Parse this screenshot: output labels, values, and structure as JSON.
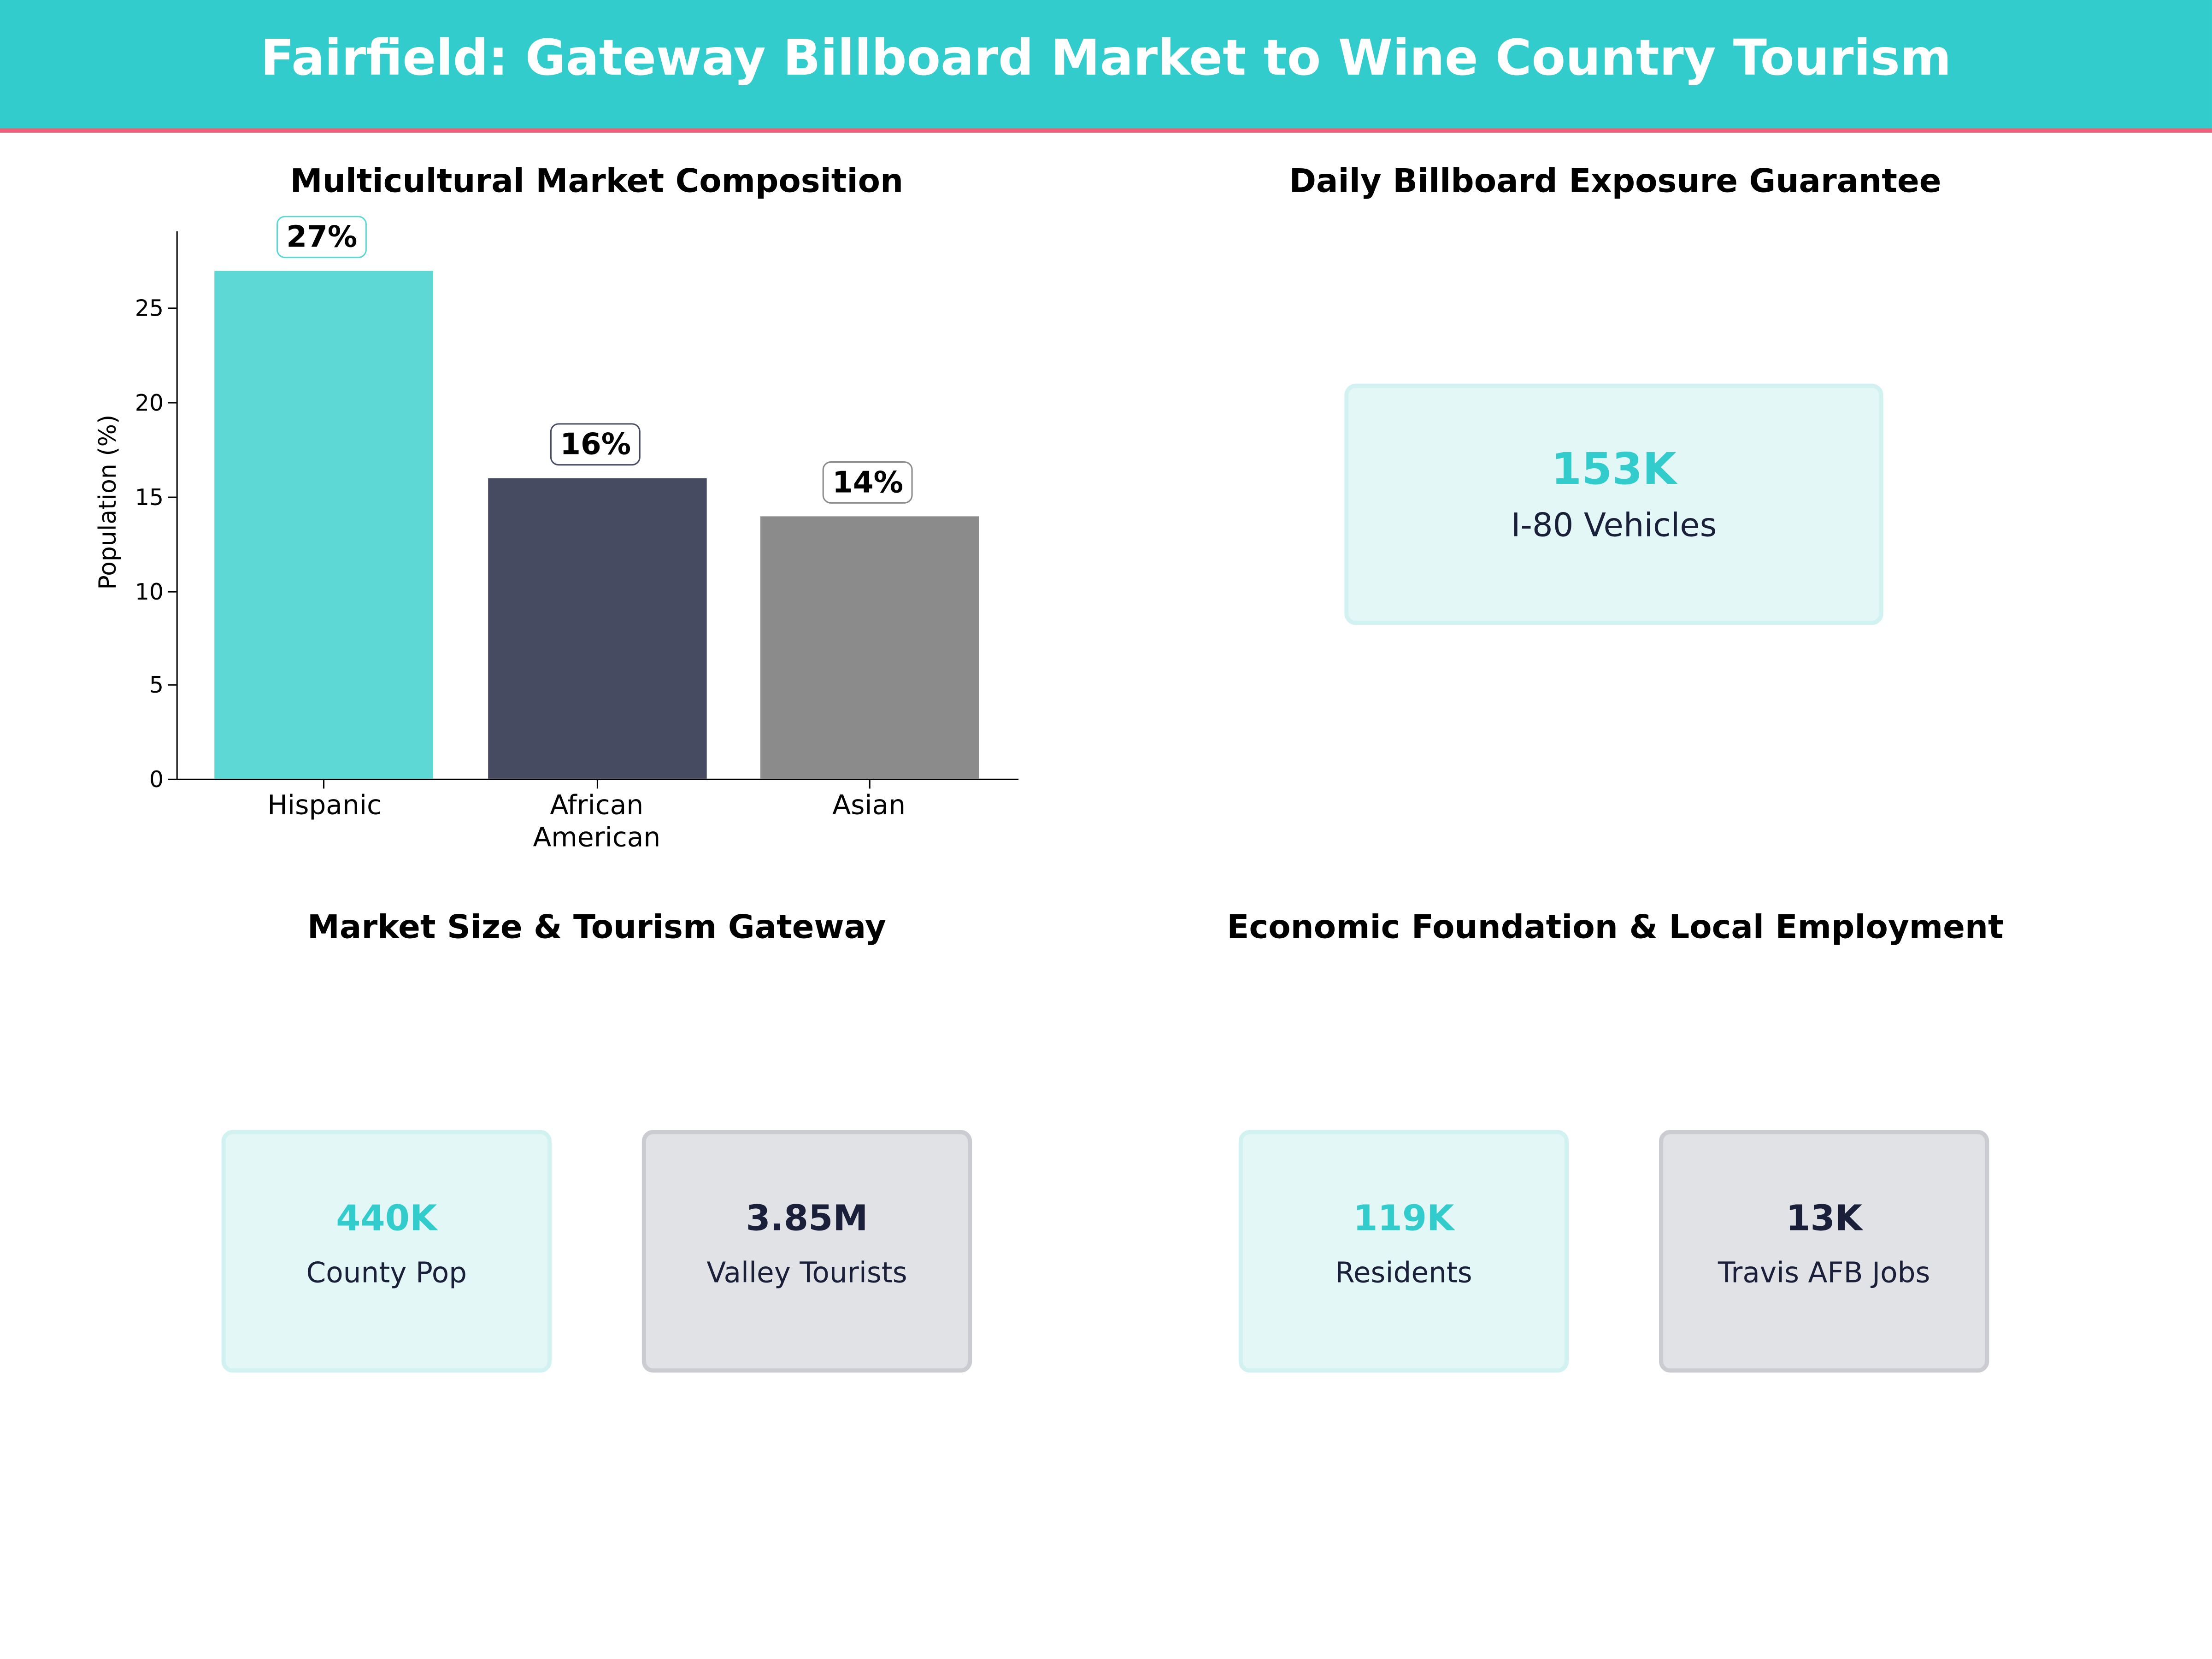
{
  "header": {
    "title": "Fairfield: Gateway Billboard Market to Wine Country Tourism"
  },
  "colors": {
    "accent_teal": "#33cccc",
    "accent_pink": "#f0607a",
    "navy": "#1a1f3a",
    "bar_hispanic": "#5dd8d4",
    "bar_african_american": "#474b61",
    "bar_asian": "#8b8b8b"
  },
  "panels": {
    "market_composition": {
      "title": "Multicultural Market Composition"
    },
    "exposure": {
      "title": "Daily Billboard Exposure Guarantee",
      "card": {
        "value": "153K",
        "label": "I-80 Vehicles"
      }
    },
    "market_size": {
      "title": "Market Size & Tourism Gateway",
      "cards": [
        {
          "value": "440K",
          "label": "County Pop"
        },
        {
          "value": "3.85M",
          "label": "Valley Tourists"
        }
      ]
    },
    "economic": {
      "title": "Economic Foundation & Local Employment",
      "cards": [
        {
          "value": "119K",
          "label": "Residents"
        },
        {
          "value": "13K",
          "label": "Travis AFB Jobs"
        }
      ]
    }
  },
  "chart_data": {
    "type": "bar",
    "title": "Multicultural Market Composition",
    "categories": [
      "Hispanic",
      "African American",
      "Asian"
    ],
    "values": [
      27,
      16,
      14
    ],
    "data_labels": [
      "27%",
      "16%",
      "14%"
    ],
    "xlabel": "",
    "ylabel": "Population (%)",
    "ylim": [
      0,
      29
    ],
    "yticks": [
      0,
      5,
      10,
      15,
      20,
      25
    ],
    "grid": false,
    "legend": null,
    "colors": [
      "#5dd8d4",
      "#474b61",
      "#8b8b8b"
    ]
  }
}
